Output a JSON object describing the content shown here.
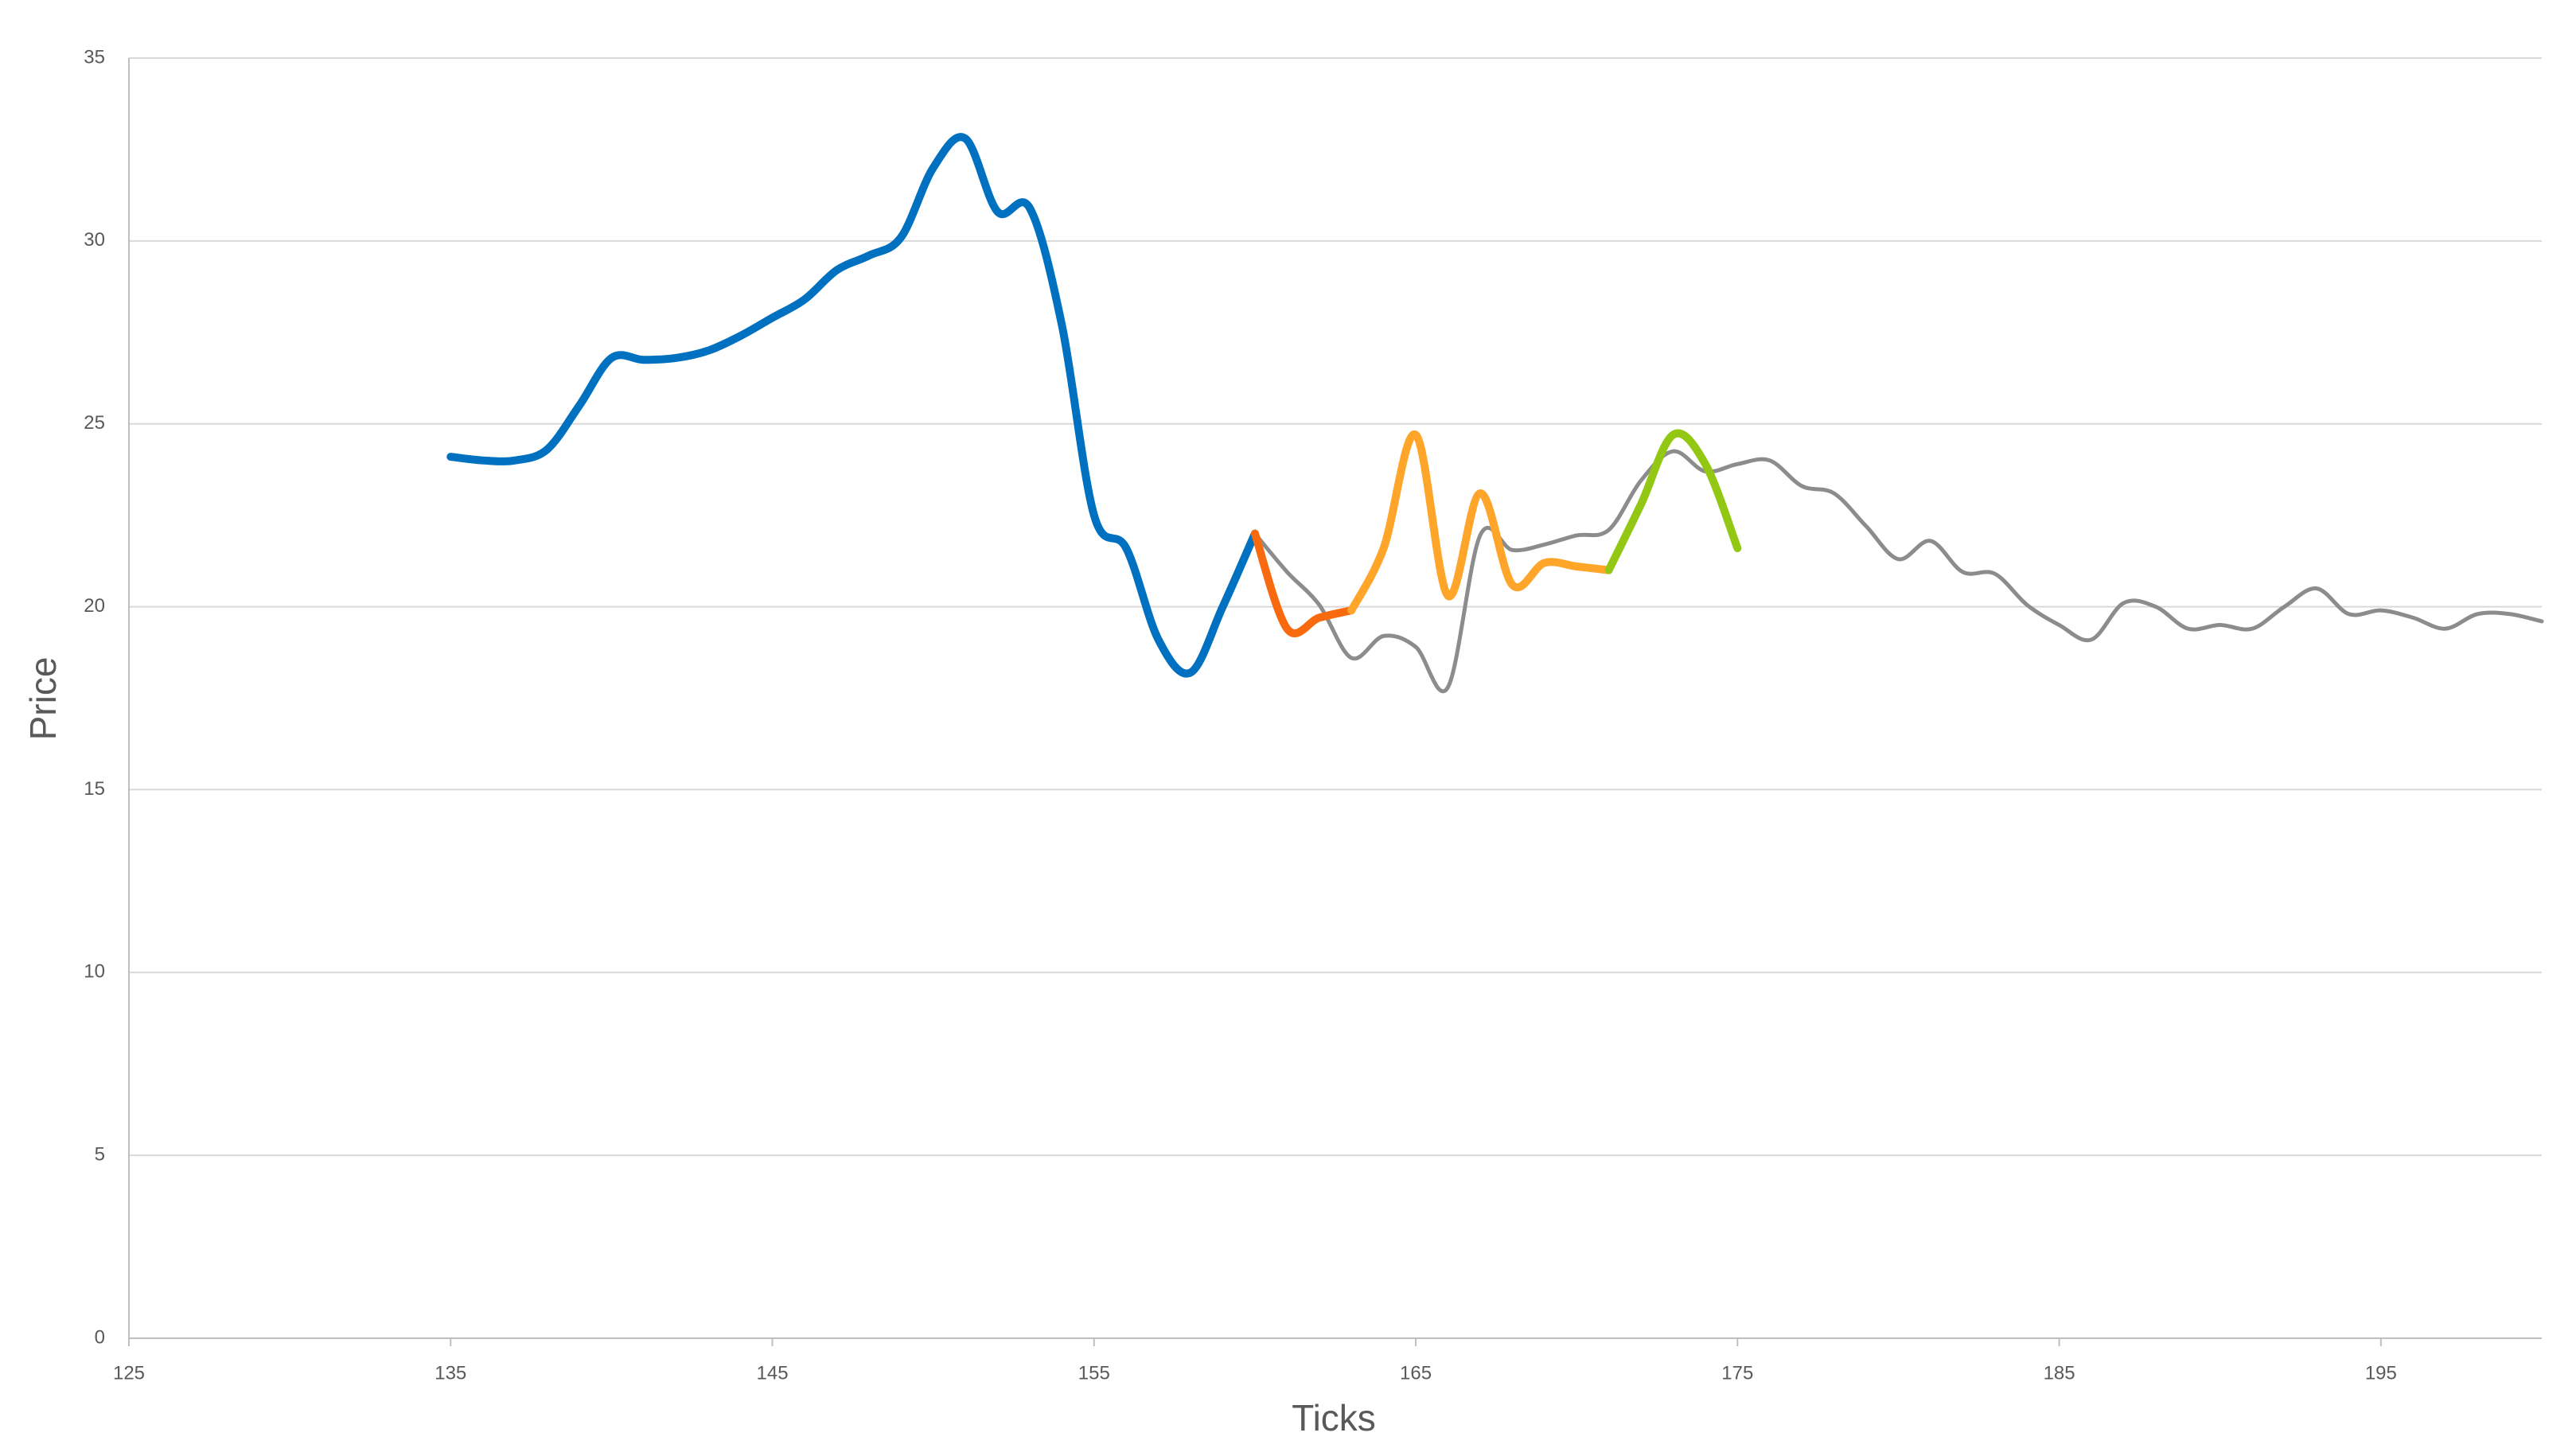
{
  "chart_data": {
    "type": "line",
    "xlabel": "Ticks",
    "ylabel": "Price",
    "xlim": [
      125,
      200
    ],
    "xticks": [
      125,
      135,
      145,
      155,
      165,
      175,
      185,
      195
    ],
    "ylim": [
      0,
      35
    ],
    "yticks": [
      0,
      5,
      10,
      15,
      20,
      25,
      30,
      35
    ],
    "grid": true,
    "series": [
      {
        "color": "#8c8c8c",
        "width": "thin",
        "x": [
          160,
          161,
          162,
          163,
          164,
          165,
          166,
          167,
          168,
          169,
          170,
          171,
          172,
          173,
          174,
          175,
          176,
          177,
          178,
          179,
          180,
          181,
          182,
          183,
          184,
          185,
          186,
          187,
          188,
          189,
          190,
          191,
          192,
          193,
          194,
          195,
          196,
          197,
          198,
          199,
          200
        ],
        "values": [
          22.0,
          20.95,
          20.05,
          18.6,
          19.2,
          18.9,
          17.8,
          21.95,
          21.55,
          21.7,
          21.95,
          22.1,
          23.45,
          24.25,
          23.7,
          23.9,
          24.0,
          23.3,
          23.1,
          22.2,
          21.3,
          21.8,
          20.95,
          20.9,
          20.05,
          19.5,
          19.1,
          20.1,
          20.0,
          19.4,
          19.5,
          19.4,
          20.0,
          20.5,
          19.8,
          19.9,
          19.7,
          19.4,
          19.8,
          19.8,
          19.6
        ]
      },
      {
        "color": "#0070c0",
        "width": "thick",
        "x": [
          135,
          136,
          137,
          138,
          139,
          140,
          141,
          142,
          143,
          144,
          145,
          146,
          147,
          148,
          149,
          150,
          151,
          152,
          153,
          154,
          155,
          156,
          157,
          158,
          159,
          160
        ],
        "values": [
          24.1,
          24.0,
          24.0,
          24.3,
          25.5,
          26.8,
          26.75,
          26.8,
          27.0,
          27.4,
          27.9,
          28.4,
          29.2,
          29.6,
          30.1,
          32.0,
          32.8,
          30.8,
          30.9,
          27.7,
          22.5,
          21.6,
          19.1,
          18.2,
          20.0,
          22.0
        ]
      },
      {
        "color": "#f96a0f",
        "width": "thick",
        "x": [
          160,
          161,
          162,
          163
        ],
        "values": [
          22.0,
          19.4,
          19.7,
          19.9
        ]
      },
      {
        "color": "#ffa52a",
        "width": "thick",
        "x": [
          163,
          164,
          165,
          166,
          167,
          168,
          169,
          170,
          171
        ],
        "values": [
          19.9,
          21.6,
          24.7,
          20.3,
          23.1,
          20.6,
          21.2,
          21.1,
          21.0
        ]
      },
      {
        "color": "#92c814",
        "width": "thick",
        "x": [
          171,
          172,
          173,
          174,
          175
        ],
        "values": [
          21.0,
          22.8,
          24.7,
          23.9,
          21.6
        ]
      }
    ]
  }
}
